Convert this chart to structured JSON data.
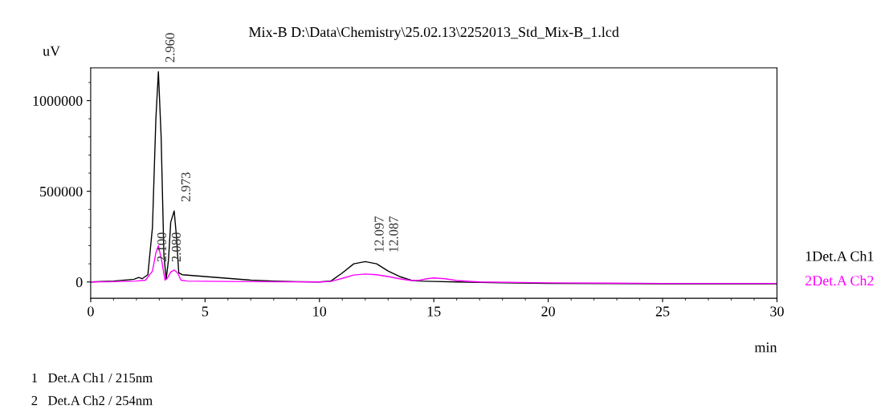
{
  "chart_data": {
    "type": "line",
    "title": "Mix-B D:\\Data\\Chemistry\\25.02.13\\2252013_Std_Mix-B_1.lcd",
    "xlabel": "min",
    "ylabel": "uV",
    "xlim": [
      0,
      30
    ],
    "xticks": [
      0,
      5,
      10,
      15,
      20,
      25,
      30
    ],
    "ylim": [
      -90000,
      1180000
    ],
    "yticks": [
      0,
      500000,
      1000000
    ],
    "grid": false,
    "legend": false,
    "series": [
      {
        "name": "1Det.A Ch1",
        "color": "#000000",
        "x": [
          0,
          1,
          1.9,
          2.1,
          2.25,
          2.5,
          2.7,
          2.85,
          2.96,
          3.08,
          3.2,
          3.3,
          3.4,
          3.5,
          3.65,
          3.75,
          3.85,
          4.0,
          5,
          6,
          7,
          8,
          9,
          10,
          10.5,
          11,
          11.5,
          12,
          12.5,
          13,
          13.5,
          14,
          14.3,
          15,
          16,
          18,
          20,
          25,
          30
        ],
        "values": [
          0,
          5000,
          15000,
          25000,
          18000,
          40000,
          300000,
          900000,
          1160000,
          800000,
          150000,
          15000,
          120000,
          330000,
          392000,
          250000,
          50000,
          40000,
          30000,
          20000,
          10000,
          5000,
          2000,
          0,
          5000,
          50000,
          100000,
          112000,
          100000,
          60000,
          30000,
          10000,
          5000,
          3000,
          0,
          -5000,
          -8000,
          -10000,
          -10000
        ]
      },
      {
        "name": "2Det.A Ch2",
        "color": "#ff00ff",
        "x": [
          0,
          1,
          2,
          2.4,
          2.7,
          2.85,
          2.96,
          3.1,
          3.25,
          3.35,
          3.5,
          3.65,
          3.8,
          3.95,
          4.2,
          5,
          7,
          10,
          10.5,
          11,
          11.5,
          12,
          12.5,
          13,
          13.5,
          14,
          14.4,
          14.7,
          15,
          15.5,
          16,
          17,
          20,
          25,
          30
        ],
        "values": [
          0,
          2000,
          5000,
          10000,
          60000,
          160000,
          200000,
          120000,
          10000,
          20000,
          55000,
          66000,
          50000,
          10000,
          5000,
          4000,
          2000,
          0,
          3000,
          20000,
          38000,
          44000,
          40000,
          30000,
          18000,
          8000,
          10000,
          18000,
          22000,
          18000,
          8000,
          0,
          -5000,
          -8000,
          -8000
        ]
      }
    ],
    "annotations": [
      {
        "text": "2.960",
        "x": 2.96,
        "y": 1160000
      },
      {
        "text": "2.973",
        "x": 3.65,
        "y": 392000
      },
      {
        "text": "2.100",
        "x": 2.6,
        "y": 60000
      },
      {
        "text": "2.080",
        "x": 2.6,
        "y": 60000
      },
      {
        "text": "12.097",
        "x": 12.1,
        "y": 112000
      },
      {
        "text": "12.087",
        "x": 12.1,
        "y": 112000
      },
      "1   Det.A Ch1 / 215nm",
      "2   Det.A Ch2 / 254nm"
    ]
  }
}
